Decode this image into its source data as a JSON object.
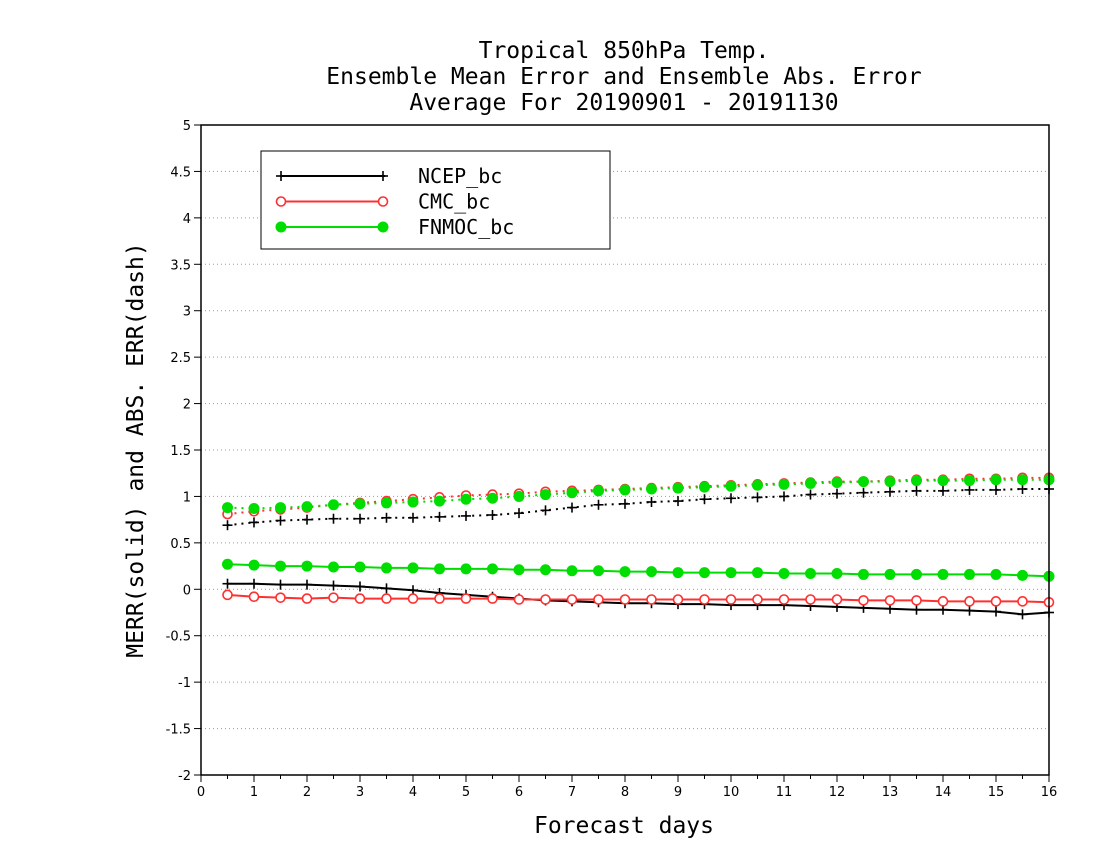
{
  "chart_data": {
    "type": "line",
    "title_lines": [
      "Tropical 850hPa Temp.",
      "Ensemble Mean Error and Ensemble Abs. Error",
      "Average For 20190901 - 20191130"
    ],
    "xlabel": "Forecast days",
    "ylabel": "MERR(solid) and ABS. ERR(dash)",
    "xlim": [
      0,
      16
    ],
    "ylim": [
      -2,
      5
    ],
    "x_ticks": [
      "0",
      "1",
      "2",
      "3",
      "4",
      "5",
      "6",
      "7",
      "8",
      "9",
      "10",
      "11",
      "12",
      "13",
      "14",
      "15",
      "16"
    ],
    "y_ticks": [
      "5",
      "4.5",
      "4",
      "3.5",
      "3",
      "2.5",
      "2",
      "1.5",
      "1",
      "0.5",
      "0",
      "-0.5",
      "-1",
      "-1.5",
      "-2"
    ],
    "grid": "horizontal dotted",
    "legend_position": "top-left",
    "x": [
      0.5,
      1,
      1.5,
      2,
      2.5,
      3,
      3.5,
      4,
      4.5,
      5,
      5.5,
      6,
      6.5,
      7,
      7.5,
      8,
      8.5,
      9,
      9.5,
      10,
      10.5,
      11,
      11.5,
      12,
      12.5,
      13,
      13.5,
      14,
      14.5,
      15,
      15.5,
      16
    ],
    "series": [
      {
        "name": "NCEP_bc",
        "color": "#000000",
        "marker": "plus",
        "merr": [
          0.06,
          0.06,
          0.05,
          0.05,
          0.04,
          0.03,
          0.01,
          -0.01,
          -0.04,
          -0.06,
          -0.08,
          -0.1,
          -0.12,
          -0.13,
          -0.14,
          -0.15,
          -0.15,
          -0.16,
          -0.16,
          -0.17,
          -0.17,
          -0.17,
          -0.18,
          -0.19,
          -0.2,
          -0.21,
          -0.22,
          -0.22,
          -0.23,
          -0.24,
          -0.27,
          -0.25
        ],
        "abs_err": [
          0.69,
          0.72,
          0.74,
          0.75,
          0.76,
          0.76,
          0.77,
          0.77,
          0.78,
          0.79,
          0.8,
          0.82,
          0.85,
          0.88,
          0.91,
          0.92,
          0.94,
          0.95,
          0.97,
          0.98,
          0.99,
          1.0,
          1.02,
          1.03,
          1.04,
          1.05,
          1.06,
          1.06,
          1.07,
          1.07,
          1.08,
          1.08
        ]
      },
      {
        "name": "CMC_bc",
        "color": "#ff3030",
        "marker": "open-circle",
        "merr": [
          -0.06,
          -0.08,
          -0.09,
          -0.1,
          -0.09,
          -0.1,
          -0.1,
          -0.1,
          -0.1,
          -0.1,
          -0.1,
          -0.11,
          -0.11,
          -0.11,
          -0.11,
          -0.11,
          -0.11,
          -0.11,
          -0.11,
          -0.11,
          -0.11,
          -0.11,
          -0.11,
          -0.11,
          -0.12,
          -0.12,
          -0.12,
          -0.13,
          -0.13,
          -0.13,
          -0.13,
          -0.14
        ],
        "abs_err": [
          0.81,
          0.84,
          0.86,
          0.88,
          0.91,
          0.93,
          0.95,
          0.97,
          0.99,
          1.01,
          1.02,
          1.03,
          1.05,
          1.06,
          1.07,
          1.08,
          1.09,
          1.1,
          1.11,
          1.12,
          1.13,
          1.14,
          1.15,
          1.16,
          1.16,
          1.17,
          1.18,
          1.18,
          1.19,
          1.19,
          1.2,
          1.2
        ]
      },
      {
        "name": "FNMOC_bc",
        "color": "#00dd00",
        "marker": "filled-circle",
        "merr": [
          0.27,
          0.26,
          0.25,
          0.25,
          0.24,
          0.24,
          0.23,
          0.23,
          0.22,
          0.22,
          0.22,
          0.21,
          0.21,
          0.2,
          0.2,
          0.19,
          0.19,
          0.18,
          0.18,
          0.18,
          0.18,
          0.17,
          0.17,
          0.17,
          0.16,
          0.16,
          0.16,
          0.16,
          0.16,
          0.16,
          0.15,
          0.14
        ],
        "abs_err": [
          0.88,
          0.87,
          0.88,
          0.89,
          0.91,
          0.92,
          0.93,
          0.94,
          0.95,
          0.97,
          0.98,
          1.0,
          1.02,
          1.04,
          1.06,
          1.07,
          1.08,
          1.09,
          1.1,
          1.11,
          1.12,
          1.13,
          1.14,
          1.15,
          1.16,
          1.16,
          1.17,
          1.17,
          1.17,
          1.18,
          1.18,
          1.18
        ]
      }
    ]
  }
}
